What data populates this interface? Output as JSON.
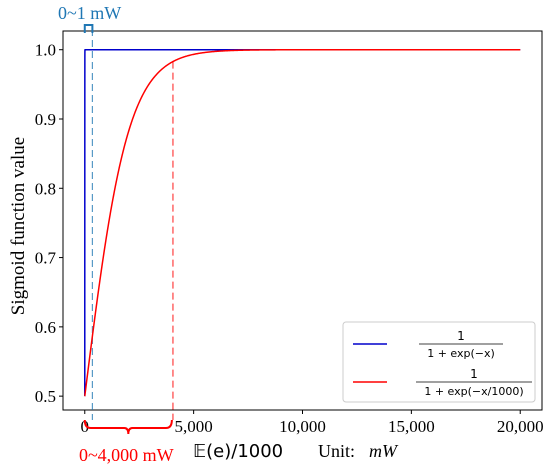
{
  "chart_data": {
    "type": "line",
    "xlabel": "𝔼(e)/1000",
    "xlabel_unit_prefix": "Unit:",
    "xlabel_unit": "mW",
    "ylabel": "Sigmoid function value",
    "xlim": [
      -1000,
      21000
    ],
    "ylim": [
      0.48,
      1.027
    ],
    "xticks": [
      0,
      5000,
      10000,
      15000,
      20000
    ],
    "xtick_labels": [
      "0",
      "5,000",
      "10,000",
      "15,000",
      "20,000"
    ],
    "yticks": [
      0.5,
      0.6,
      0.7,
      0.8,
      0.9,
      1.0
    ],
    "ytick_labels": [
      "0.5",
      "0.6",
      "0.7",
      "0.8",
      "0.9",
      "1.0"
    ],
    "grid": false,
    "legend_position": "bottom-right",
    "x_domain": [
      0,
      20000
    ],
    "series": [
      {
        "name": "1 / (1 + exp(−x))",
        "color": "#0000cc",
        "scale": 1,
        "legend": {
          "numerator": "1",
          "denominator": "1 + exp(−x)"
        }
      },
      {
        "name": "1 / (1 + exp(−x/1000))",
        "color": "#ff0000",
        "scale": 1000,
        "legend": {
          "numerator": "1",
          "denominator": "1 + exp(−x/1000)"
        }
      }
    ],
    "annotations": [
      {
        "text": "0~1 mW",
        "color": "#1f77b4",
        "x_from": 0,
        "x_to": 350,
        "placement": "top",
        "guide_x": 350
      },
      {
        "text": "0~4,000 mW",
        "color": "#ff0000",
        "x_from": 0,
        "x_to": 4000,
        "placement": "bottom",
        "guide_x": 4050
      }
    ]
  }
}
